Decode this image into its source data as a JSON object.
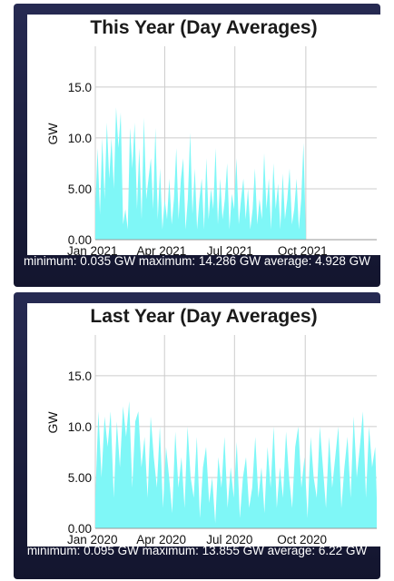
{
  "charts": [
    {
      "title": "This Year (Day Averages)",
      "stats": "minimum: 0.035 GW maximum: 14.286 GW average: 4.928 GW"
    },
    {
      "title": "Last Year (Day Averages)",
      "stats": "minimum: 0.095 GW maximum: 13.855 GW average: 6.22 GW"
    }
  ],
  "colors": {
    "fill": "#7ff7f7",
    "panel": "#1d2044",
    "grid": "#cccccc"
  },
  "chart_data": [
    {
      "type": "area",
      "title": "This Year (Day Averages)",
      "ylabel": "GW",
      "ylim": [
        0,
        19
      ],
      "yticks": [
        "0.00",
        "5.00",
        "10.0",
        "15.0"
      ],
      "xticks": [
        "Jan 2021",
        "Apr 2021",
        "Jul 2021",
        "Oct 2021"
      ],
      "x_range_days": [
        0,
        365
      ],
      "grid": true,
      "x": [
        0,
        3,
        6,
        9,
        12,
        15,
        18,
        21,
        24,
        27,
        30,
        33,
        36,
        39,
        42,
        45,
        48,
        51,
        54,
        57,
        60,
        63,
        66,
        69,
        72,
        75,
        78,
        81,
        84,
        87,
        90,
        93,
        96,
        99,
        102,
        105,
        108,
        111,
        114,
        117,
        120,
        123,
        126,
        129,
        132,
        135,
        138,
        141,
        144,
        147,
        150,
        153,
        156,
        159,
        162,
        165,
        168,
        171,
        174,
        177,
        180,
        183,
        186,
        189,
        192,
        195,
        198,
        201,
        204,
        207,
        210,
        213,
        216,
        219,
        222,
        225,
        228,
        231,
        234,
        237,
        240,
        243,
        246,
        249,
        252,
        255,
        258,
        261,
        264,
        267,
        270,
        273
      ],
      "values": [
        3,
        9,
        2.5,
        10,
        4,
        11.5,
        6,
        10,
        5,
        13,
        9,
        12.5,
        1.5,
        3,
        1,
        11,
        7,
        11.5,
        3,
        9,
        2,
        12,
        4,
        6,
        8,
        3,
        11,
        2,
        7,
        1,
        4,
        2,
        6,
        1.5,
        4,
        9,
        2,
        6,
        8,
        1,
        4,
        10.5,
        2.5,
        7,
        1,
        4,
        6,
        1,
        8,
        2,
        5,
        3,
        9,
        1.5,
        6,
        2,
        4,
        7.5,
        1,
        4.5,
        3,
        8,
        1.5,
        4,
        6,
        2,
        5,
        1,
        3,
        7,
        1.5,
        4,
        2,
        8.5,
        3,
        6,
        1,
        7.5,
        3,
        5.5,
        1,
        6.5,
        2,
        4,
        7,
        1.5,
        3,
        6,
        1,
        4,
        9.5,
        0.5
      ]
    },
    {
      "type": "area",
      "title": "Last Year (Day Averages)",
      "ylabel": "GW",
      "ylim": [
        0,
        19
      ],
      "yticks": [
        "0.00",
        "5.00",
        "10.0",
        "15.0"
      ],
      "xticks": [
        "Jan 2020",
        "Apr 2020",
        "Jul 2020",
        "Oct 2020"
      ],
      "x_range_days": [
        0,
        366
      ],
      "grid": true,
      "x": [
        0,
        4,
        8,
        12,
        16,
        20,
        24,
        28,
        32,
        36,
        40,
        44,
        48,
        52,
        56,
        60,
        64,
        68,
        72,
        76,
        80,
        84,
        88,
        92,
        96,
        100,
        104,
        108,
        112,
        116,
        120,
        124,
        128,
        132,
        136,
        140,
        144,
        148,
        152,
        156,
        160,
        164,
        168,
        172,
        176,
        180,
        184,
        188,
        192,
        196,
        200,
        204,
        208,
        212,
        216,
        220,
        224,
        228,
        232,
        236,
        240,
        244,
        248,
        252,
        256,
        260,
        264,
        268,
        272,
        276,
        280,
        284,
        288,
        292,
        296,
        300,
        304,
        308,
        312,
        316,
        320,
        324,
        328,
        332,
        336,
        340,
        344,
        348,
        352,
        356,
        360,
        364,
        366
      ],
      "values": [
        3,
        11.5,
        5,
        11,
        8,
        11.5,
        3,
        10.5,
        6,
        12,
        9,
        12.5,
        4,
        10.5,
        11.5,
        6,
        9,
        3,
        11,
        7,
        4,
        10,
        2,
        8,
        5,
        1.5,
        9.5,
        4,
        7,
        2,
        10,
        5,
        3,
        9,
        1,
        6,
        8,
        2.5,
        5,
        0.5,
        7,
        4,
        9,
        2,
        6,
        3,
        8.5,
        1,
        5,
        7,
        2,
        4,
        9,
        3,
        6,
        1.5,
        8,
        4,
        10,
        2,
        6,
        3,
        9.5,
        5,
        2,
        8,
        10,
        4,
        7,
        1,
        9,
        5,
        3,
        10,
        6,
        2,
        9,
        4,
        7,
        10,
        2,
        6,
        9,
        3,
        11,
        5,
        8,
        11.5,
        3,
        10,
        6,
        8,
        3
      ]
    }
  ]
}
